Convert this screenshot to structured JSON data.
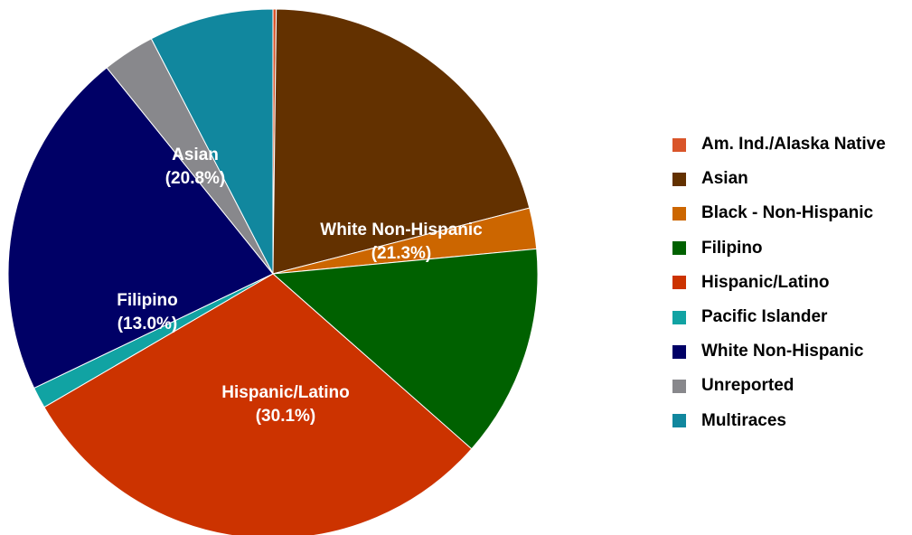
{
  "chart_data": {
    "type": "pie",
    "title": "",
    "legend_position": "right",
    "slices": [
      {
        "label": "Am. Ind./Alaska Native",
        "value": 0.2,
        "color": "#d9552a",
        "data_label": ""
      },
      {
        "label": "Asian",
        "value": 20.8,
        "color": "#633100",
        "data_label": "(20.8%)"
      },
      {
        "label": "Black - Non-Hispanic",
        "value": 2.5,
        "color": "#cc6600",
        "data_label": ""
      },
      {
        "label": "Filipino",
        "value": 13.0,
        "color": "#006100",
        "data_label": "(13.0%)"
      },
      {
        "label": "Hispanic/Latino",
        "value": 30.1,
        "color": "#cc3300",
        "data_label": "(30.1%)"
      },
      {
        "label": "Pacific Islander",
        "value": 1.3,
        "color": "#11a3a3",
        "data_label": ""
      },
      {
        "label": "White Non-Hispanic",
        "value": 21.3,
        "color": "#000066",
        "data_label": "(21.3%)"
      },
      {
        "label": "Unreported",
        "value": 3.2,
        "color": "#88888c",
        "data_label": ""
      },
      {
        "label": "Multiraces",
        "value": 7.6,
        "color": "#11879e",
        "data_label": ""
      }
    ]
  }
}
